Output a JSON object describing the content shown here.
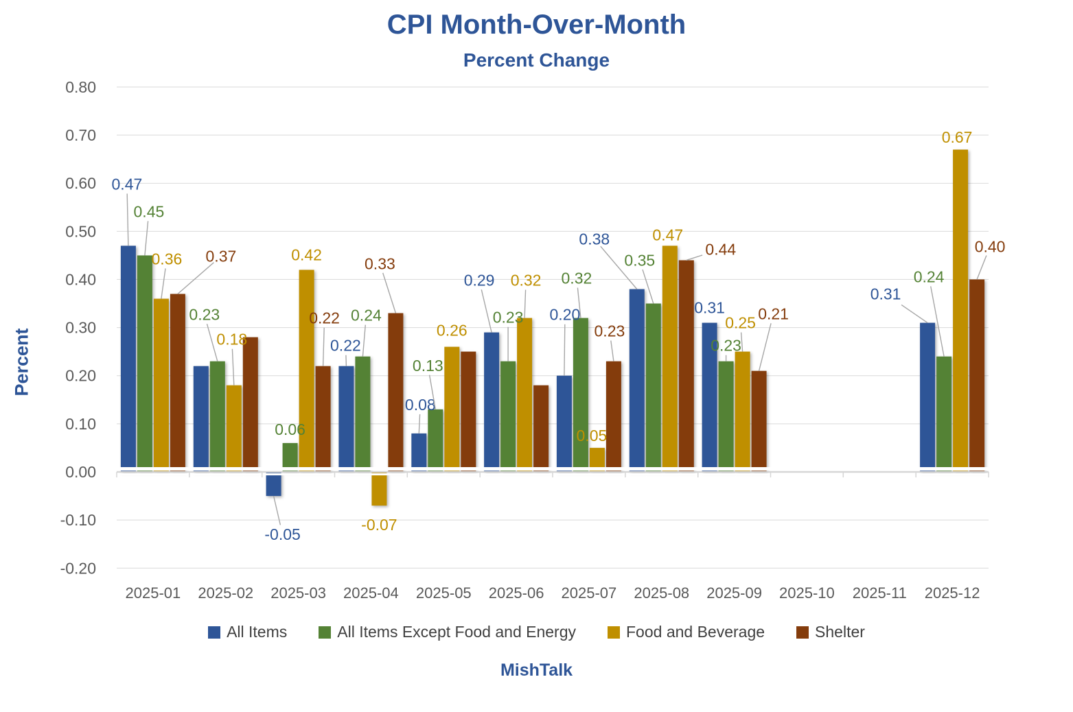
{
  "page": {
    "title": "CPI Month-Over-Month",
    "subtitle": "Percent Change",
    "footer": "MishTalk"
  },
  "colors": {
    "title_blue": "#2E5597",
    "series_blue": "#2E5597",
    "series_green": "#548235",
    "series_gold": "#BF8F00",
    "series_brown": "#843C0C",
    "axis_text_gray": "#595959",
    "legend_text": "#3F3F3F",
    "gridline": "#D9D9D9",
    "axis_line": "#D6D6D6",
    "leader_line": "#A6A6A6"
  },
  "chart_data": {
    "type": "bar",
    "title": "CPI Month-Over-Month",
    "subtitle": "Percent Change",
    "xlabel": "",
    "ylabel": "Percent",
    "ylim": [
      -0.2,
      0.8
    ],
    "ytick_step": 0.1,
    "yticks": [
      "0.80",
      "0.70",
      "0.60",
      "0.50",
      "0.40",
      "0.30",
      "0.20",
      "0.10",
      "0.00",
      "-0.10",
      "-0.20"
    ],
    "grid": true,
    "legend_position": "bottom",
    "source_label": "MishTalk",
    "categories": [
      "2025-01",
      "2025-02",
      "2025-03",
      "2025-04",
      "2025-05",
      "2025-06",
      "2025-07",
      "2025-08",
      "2025-09",
      "2025-10",
      "2025-11",
      "2025-12"
    ],
    "series": [
      {
        "name": "All Items",
        "color": "#2E5597",
        "values": [
          0.47,
          0.22,
          -0.05,
          0.22,
          0.08,
          0.29,
          0.2,
          0.38,
          0.31,
          null,
          null,
          0.31
        ],
        "labels": [
          "0.47",
          null,
          "-0.05",
          "0.22",
          "0.08",
          "0.29",
          "0.20",
          "0.38",
          "0.31",
          null,
          null,
          "0.31"
        ],
        "label_offsets": [
          [
            -2,
            -90,
            1
          ],
          null,
          [
            13,
            56,
            1
          ],
          [
            -1,
            -30,
            1
          ],
          [
            2,
            -42,
            1
          ],
          [
            -18,
            -76,
            1
          ],
          [
            1,
            -89,
            1
          ],
          [
            -62,
            -73,
            1
          ],
          [
            0,
            -22,
            0
          ],
          null,
          null,
          [
            -61,
            -42,
            1
          ]
        ]
      },
      {
        "name": "All Items Except Food and Energy",
        "color": "#548235",
        "values": [
          0.45,
          0.23,
          0.06,
          0.24,
          0.13,
          0.23,
          0.32,
          0.35,
          0.23,
          null,
          null,
          0.24
        ],
        "labels": [
          "0.45",
          "0.23",
          "0.06",
          "0.24",
          "0.13",
          "0.23",
          "0.32",
          "0.35",
          "0.23",
          null,
          null,
          "0.24"
        ],
        "label_offsets": [
          [
            6,
            -64,
            1
          ],
          [
            -19,
            -68,
            1
          ],
          [
            0,
            -20,
            0
          ],
          [
            5,
            -60,
            1
          ],
          [
            -11,
            -64,
            1
          ],
          [
            0,
            -64,
            1
          ],
          [
            -6,
            -58,
            1
          ],
          [
            -20,
            -63,
            1
          ],
          [
            0,
            -23,
            1
          ],
          null,
          null,
          [
            -22,
            -116,
            1
          ]
        ]
      },
      {
        "name": "Food and Beverage",
        "color": "#BF8F00",
        "values": [
          0.36,
          0.18,
          0.42,
          -0.07,
          0.26,
          0.32,
          0.05,
          0.47,
          0.25,
          null,
          null,
          0.67
        ],
        "labels": [
          "0.36",
          "0.18",
          "0.42",
          "-0.07",
          "0.26",
          "0.32",
          "0.05",
          "0.47",
          "0.25",
          null,
          null,
          "0.67"
        ],
        "label_offsets": [
          [
            8,
            -58,
            1
          ],
          [
            -3,
            -67,
            1
          ],
          [
            0,
            -22,
            0
          ],
          [
            0,
            28,
            0
          ],
          [
            0,
            -24,
            0
          ],
          [
            2,
            -55,
            1
          ],
          [
            -8,
            -18,
            0
          ],
          [
            -3,
            -16,
            0
          ],
          [
            -3,
            -42,
            1
          ],
          null,
          null,
          [
            -5,
            -18,
            0
          ]
        ]
      },
      {
        "name": "Shelter",
        "color": "#843C0C",
        "values": [
          0.37,
          0.28,
          0.22,
          0.33,
          0.25,
          0.18,
          0.23,
          0.44,
          0.21,
          null,
          null,
          0.4
        ],
        "labels": [
          "0.37",
          null,
          "0.22",
          "0.33",
          null,
          null,
          "0.23",
          "0.44",
          "0.21",
          null,
          null,
          "0.40"
        ],
        "label_offsets": [
          [
            63,
            -55,
            1
          ],
          null,
          [
            2,
            -70,
            1
          ],
          [
            -23,
            -72,
            1
          ],
          null,
          null,
          [
            -6,
            -44,
            1
          ],
          [
            50,
            -16,
            1
          ],
          [
            21,
            -83,
            1
          ],
          null,
          null,
          [
            19,
            -48,
            1
          ]
        ]
      }
    ]
  }
}
